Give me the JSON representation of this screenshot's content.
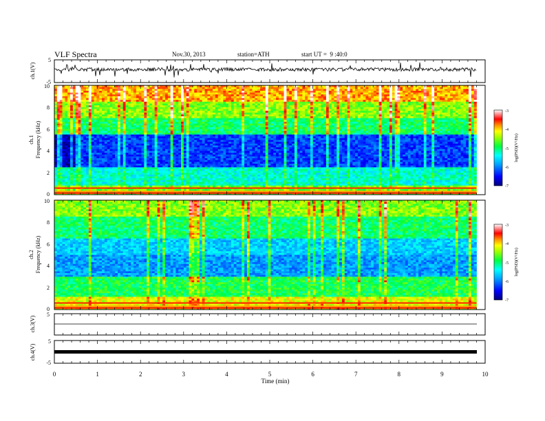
{
  "header": {
    "title": "VLF Spectra",
    "date": "Nov.30, 2013",
    "station": "station=ATH",
    "start": "start UT =  9 :40:0"
  },
  "chart_data": [
    {
      "id": "ch1_waveform",
      "type": "line",
      "ylabel": "ch.1(V)",
      "ylim": [
        -5,
        5
      ],
      "yticks": [
        "5",
        "-5"
      ],
      "xlim": [
        0,
        10
      ],
      "note_color": "#000000"
    },
    {
      "id": "ch1_spectrogram",
      "type": "heatmap",
      "ylabel_line1": "ch.1",
      "ylabel_line2": "Frequency (kHz)",
      "ylim": [
        0,
        10
      ],
      "yticks": [
        "0",
        "2",
        "4",
        "6",
        "8",
        "10"
      ],
      "xlim": [
        0,
        10
      ],
      "data_end_min": 9.8,
      "colorbar": {
        "label": "log(PSD)(V²/Hz)",
        "range": [
          -7,
          -3
        ],
        "ticks": [
          "-3",
          "-4",
          "-5",
          "-6",
          "-7"
        ]
      }
    },
    {
      "id": "ch2_spectrogram",
      "type": "heatmap",
      "ylabel_line1": "ch.2",
      "ylabel_line2": "Frequency (kHz)",
      "ylim": [
        0,
        10
      ],
      "yticks": [
        "0",
        "2",
        "4",
        "6",
        "8",
        "10"
      ],
      "xlim": [
        0,
        10
      ],
      "data_end_min": 9.8,
      "colorbar": {
        "label": "log(PSD)(V²/Hz)",
        "range": [
          -7,
          -3
        ],
        "ticks": [
          "-3",
          "-4",
          "-5",
          "-6",
          "-7"
        ]
      }
    },
    {
      "id": "ch3_waveform",
      "type": "line",
      "ylabel": "ch.3(V)",
      "ylim": [
        -5,
        5
      ],
      "yticks": [
        "5"
      ],
      "xlim": [
        0,
        10
      ]
    },
    {
      "id": "ch4_waveform",
      "type": "line",
      "ylabel": "ch.4(V)",
      "ylim": [
        -5,
        5
      ],
      "yticks": [
        "5",
        "-5"
      ],
      "xlim": [
        0,
        10
      ]
    }
  ],
  "x_axis": {
    "label": "Time (min)",
    "ticks": [
      "0",
      "1",
      "2",
      "3",
      "4",
      "5",
      "6",
      "7",
      "8",
      "9",
      "10"
    ]
  },
  "colorbar_colors": [
    "#000090",
    "#0000ff",
    "#00a0ff",
    "#00ffff",
    "#00ff60",
    "#a0ff00",
    "#ffff00",
    "#ffa000",
    "#ff0000",
    "#ffffff"
  ]
}
